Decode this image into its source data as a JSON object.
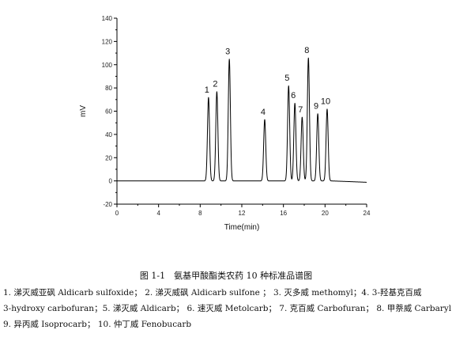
{
  "chart_data": {
    "type": "line",
    "xlabel": "Time(min)",
    "ylabel": "mV",
    "xlim": [
      0,
      24
    ],
    "ylim": [
      -20,
      140
    ],
    "xticks": [
      0,
      4,
      8,
      12,
      16,
      20,
      24
    ],
    "yticks": [
      -20,
      0,
      20,
      40,
      60,
      80,
      100,
      120,
      140
    ],
    "baseline": 0,
    "line_color": "#000000",
    "grid": false,
    "peaks": [
      {
        "label": "1",
        "time": 8.8,
        "height": 72
      },
      {
        "label": "2",
        "time": 9.6,
        "height": 77
      },
      {
        "label": "3",
        "time": 10.8,
        "height": 105
      },
      {
        "label": "4",
        "time": 14.2,
        "height": 53
      },
      {
        "label": "5",
        "time": 16.5,
        "height": 82
      },
      {
        "label": "6",
        "time": 17.1,
        "height": 67
      },
      {
        "label": "7",
        "time": 17.8,
        "height": 55
      },
      {
        "label": "8",
        "time": 18.4,
        "height": 106
      },
      {
        "label": "9",
        "time": 19.3,
        "height": 58
      },
      {
        "label": "10",
        "time": 20.2,
        "height": 62
      }
    ]
  },
  "caption": "图 1-1　氨基甲酸酯类农药 10 种标准品谱图",
  "legend_lines": [
    "1. 涕灭威亚砜 Aldicarb sulfoxide；  2. 涕灭威砜 Aldicarb sulfone ；  3. 灭多威 methomyl；4. 3-羟基克百威",
    "3-hydroxy carbofuran；5. 涕灭威 Aldicarb；  6. 速灭威 Metolcarb；  7. 克百威 Carbofuran；  8. 甲萘威 Carbaryl；",
    "9. 异丙威 Isoprocarb；   10. 仲丁威 Fenobucarb"
  ]
}
